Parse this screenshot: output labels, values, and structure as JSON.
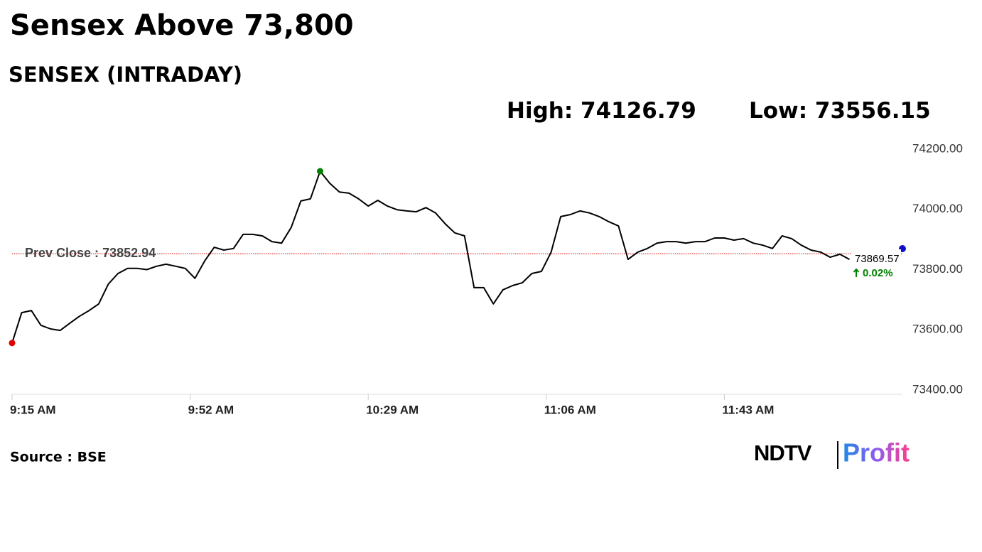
{
  "chart_data": {
    "type": "line",
    "title": "Sensex Above 73,800",
    "subtitle": "SENSEX (INTRADAY)",
    "high_label": "High:",
    "high": 74126.79,
    "low_label": "Low:",
    "low": 73556.15,
    "prev_close_label": "Prev Close :",
    "prev_close": 73852.94,
    "prev_close_color": "#d40000",
    "last": 73869.57,
    "change": "0.02%",
    "change_color": "#008000",
    "color": "#000000",
    "x": [
      "09:15",
      "09:17",
      "09:19",
      "09:21",
      "09:23",
      "09:25",
      "09:27",
      "09:29",
      "09:31",
      "09:33",
      "09:35",
      "09:37",
      "09:39",
      "09:41",
      "09:43",
      "09:45",
      "09:47",
      "09:49",
      "09:51",
      "09:53",
      "09:55",
      "09:57",
      "09:59",
      "10:01",
      "10:03",
      "10:05",
      "10:07",
      "10:09",
      "10:11",
      "10:13",
      "10:15",
      "10:17",
      "10:19",
      "10:21",
      "10:23",
      "10:25",
      "10:27",
      "10:29",
      "10:31",
      "10:33",
      "10:35",
      "10:37",
      "10:39",
      "10:41",
      "10:43",
      "10:45",
      "10:47",
      "10:49",
      "10:51",
      "10:53",
      "10:55",
      "10:57",
      "10:59",
      "11:01",
      "11:03",
      "11:05",
      "11:07",
      "11:09",
      "11:11",
      "11:13",
      "11:15",
      "11:17",
      "11:19",
      "11:21",
      "11:23",
      "11:25",
      "11:27",
      "11:29",
      "11:31",
      "11:33",
      "11:35",
      "11:37",
      "11:39",
      "11:41",
      "11:43",
      "11:45",
      "11:47",
      "11:49",
      "11:51",
      "11:53",
      "11:55",
      "11:57",
      "11:59",
      "12:01",
      "12:03",
      "12:05",
      "12:07",
      "12:09"
    ],
    "values": [
      73556.15,
      73657,
      73664,
      73615,
      73603,
      73598,
      73622,
      73645,
      73664,
      73686,
      73752,
      73787,
      73804,
      73804,
      73800,
      73811,
      73818,
      73811,
      73804,
      73771,
      73828,
      73874,
      73865,
      73870,
      73917,
      73917,
      73912,
      73893,
      73888,
      73940,
      74028,
      74035,
      74126.79,
      74087,
      74058,
      74054,
      74035,
      74011,
      74030,
      74011,
      73999,
      73995,
      73992,
      74006,
      73988,
      73952,
      73922,
      73912,
      73740,
      73740,
      73686,
      73733,
      73747,
      73756,
      73787,
      73794,
      73858,
      73976,
      73983,
      73995,
      73988,
      73976,
      73959,
      73945,
      73834,
      73858,
      73870,
      73888,
      73893,
      73893,
      73888,
      73893,
      73893,
      73905,
      73905,
      73898,
      73903,
      73888,
      73881,
      73870,
      73912,
      73903,
      73881,
      73865,
      73858,
      73841,
      73851,
      73834
    ],
    "xlim": [
      "09:15",
      "12:20"
    ],
    "xticks": [
      {
        "value": "09:15",
        "label": "9:15 AM"
      },
      {
        "value": "09:52",
        "label": "9:52 AM"
      },
      {
        "value": "10:29",
        "label": "10:29 AM"
      },
      {
        "value": "11:06",
        "label": "11:06 AM"
      },
      {
        "value": "11:43",
        "label": "11:43 AM"
      }
    ],
    "ylim": [
      73400,
      74200
    ],
    "yticks": [
      {
        "value": 73400,
        "label": "73400.00"
      },
      {
        "value": 73600,
        "label": "73600.00"
      },
      {
        "value": 73800,
        "label": "73800.00"
      },
      {
        "value": 74000,
        "label": "74000.00"
      },
      {
        "value": 74200,
        "label": "74200.00"
      }
    ],
    "source": "Source : BSE",
    "logo": {
      "brand": "NDTV",
      "product": "Profit"
    }
  }
}
